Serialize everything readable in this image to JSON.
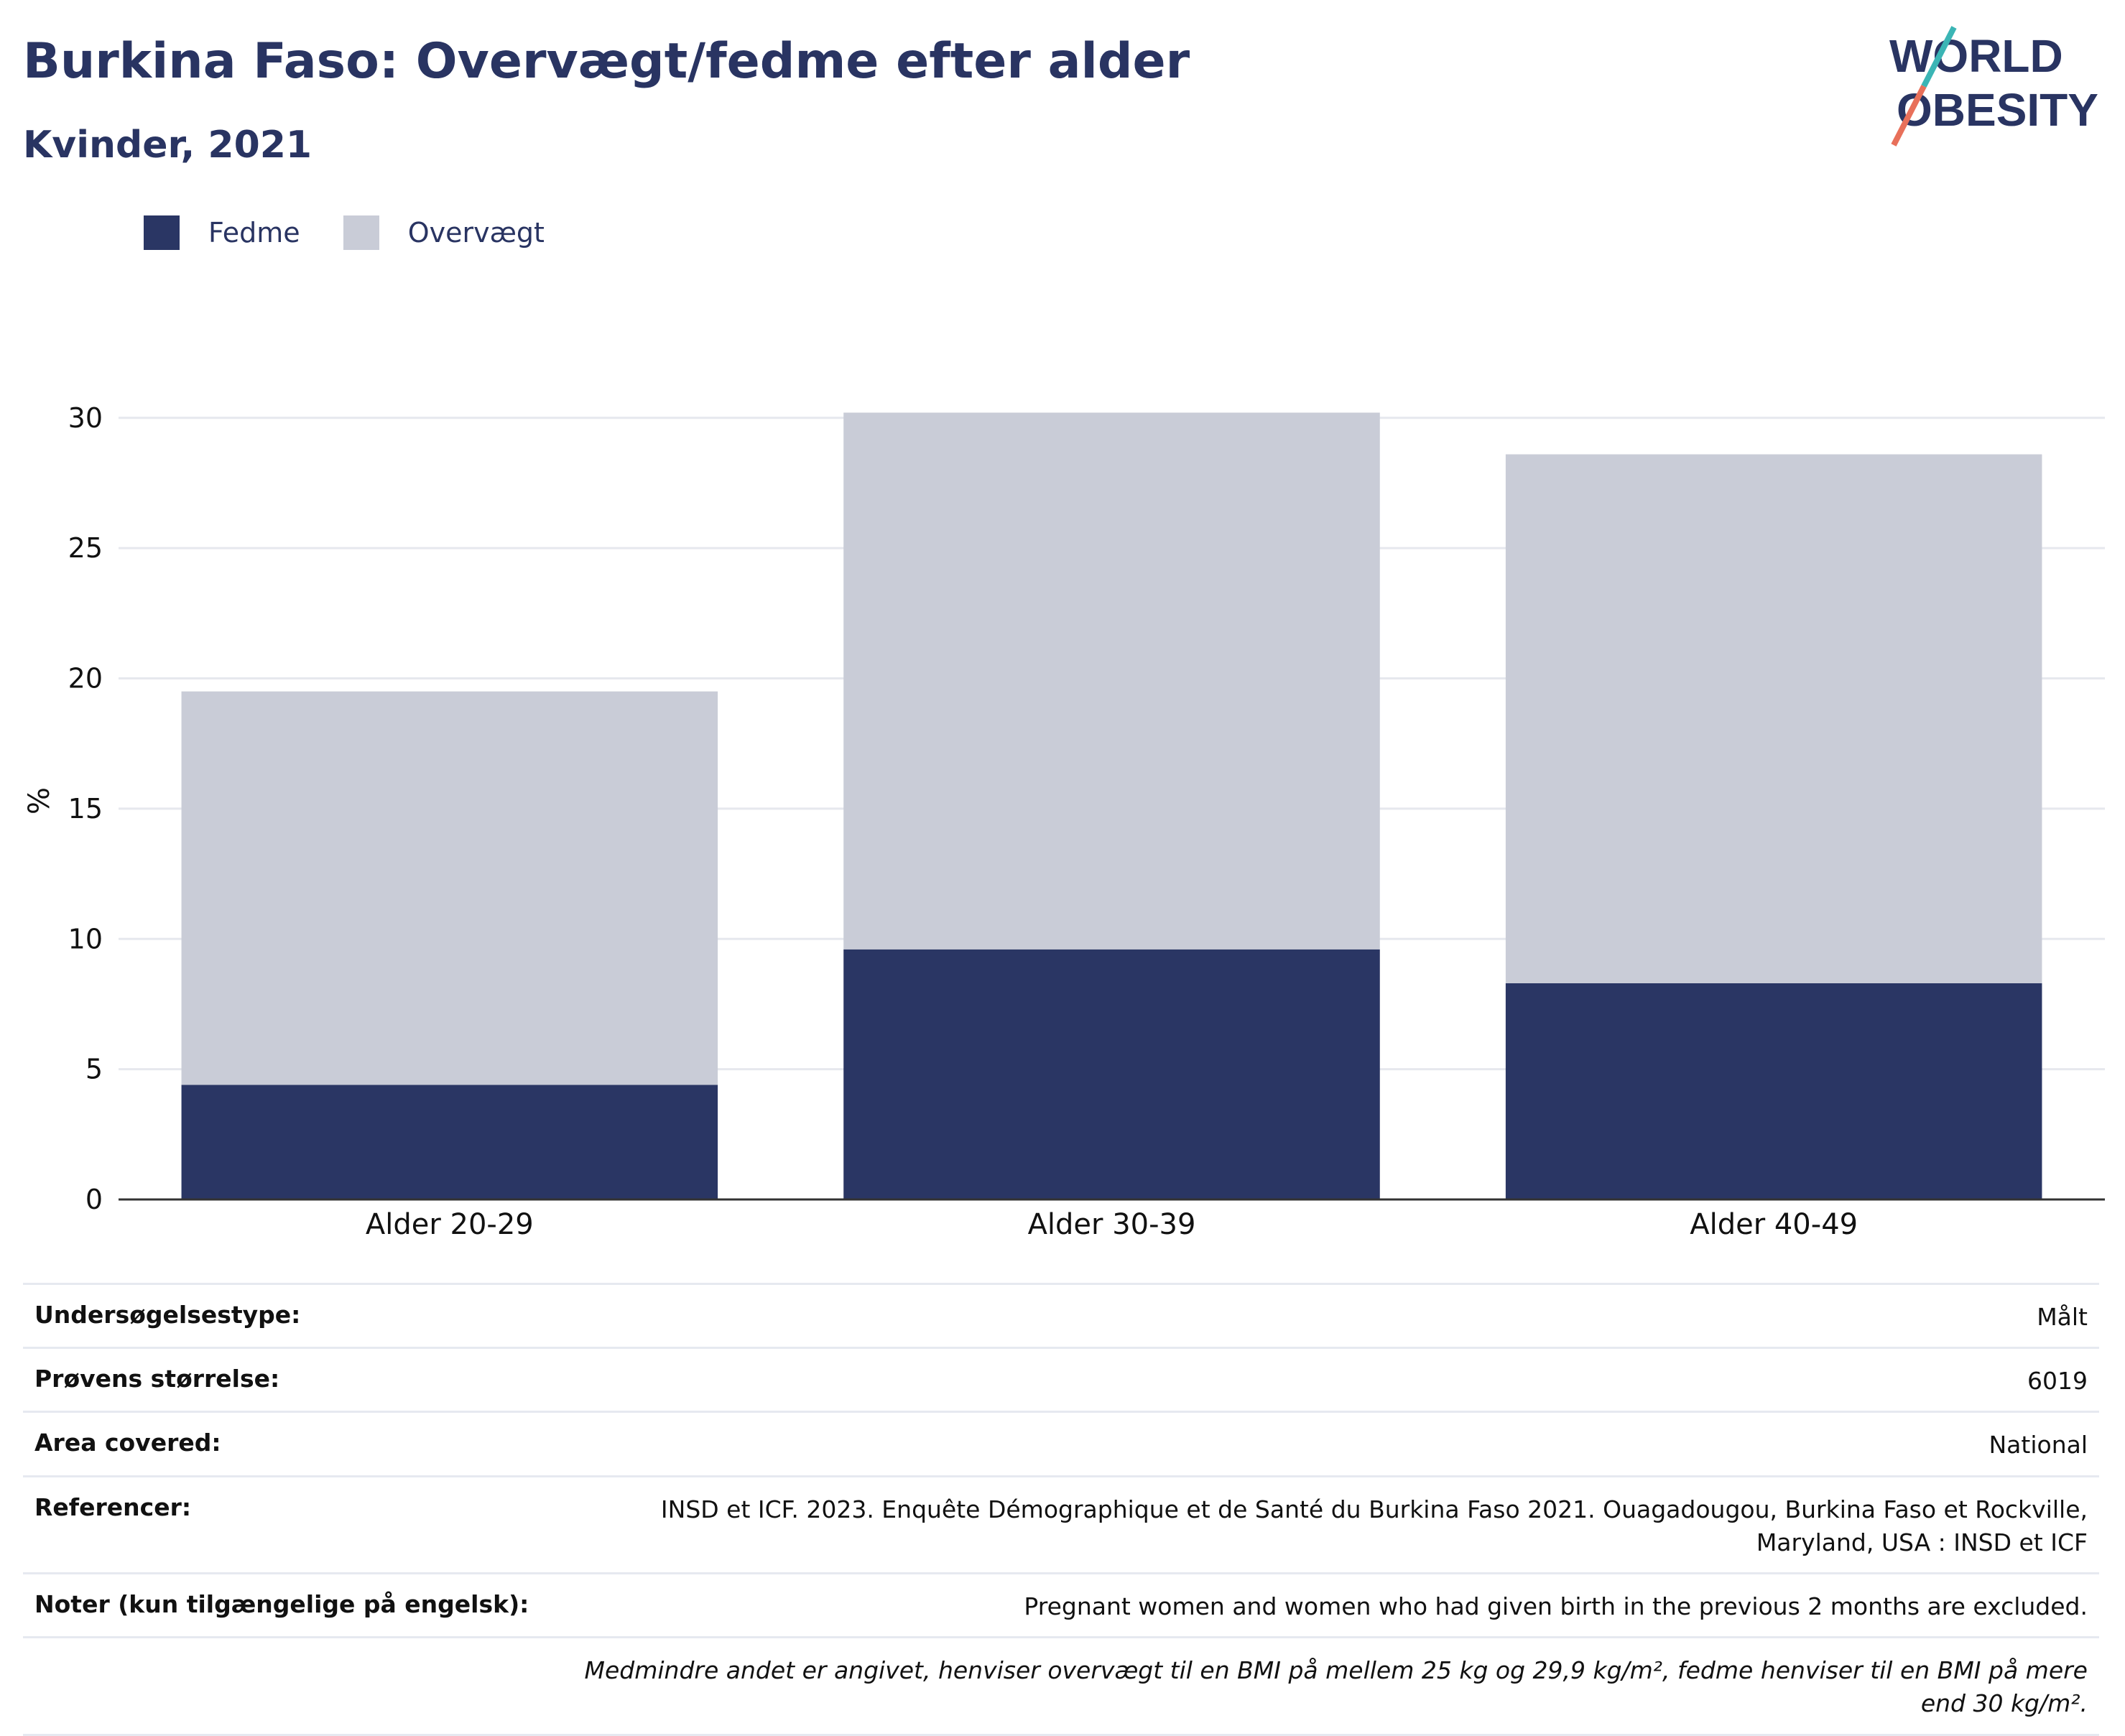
{
  "title": "Burkina Faso: Overvægt/fedme efter alder",
  "subtitle": "Kvinder, 2021",
  "logo": {
    "line1": "WORLD",
    "line2": "OBESITY"
  },
  "colors": {
    "fedme": "#2a3664",
    "overvaegt": "#c9ccd7",
    "text": "#293462"
  },
  "legend": [
    {
      "label": "Fedme",
      "color": "#2a3664"
    },
    {
      "label": "Overvægt",
      "color": "#c9ccd7"
    }
  ],
  "chart_data": {
    "type": "bar",
    "stacked": true,
    "categories": [
      "Alder 20-29",
      "Alder 30-39",
      "Alder 40-49"
    ],
    "series": [
      {
        "name": "Fedme",
        "values": [
          4.4,
          9.6,
          8.3
        ]
      },
      {
        "name": "Overvægt",
        "values": [
          15.1,
          20.6,
          20.3
        ]
      }
    ],
    "ylabel": "%",
    "ylim": [
      0,
      30.6
    ],
    "yticks": [
      0,
      5,
      10,
      15,
      20,
      25,
      30
    ],
    "grid": true,
    "legend_position": "top-left"
  },
  "info": {
    "rows": [
      {
        "label": "Undersøgelsestype:",
        "value": "Målt"
      },
      {
        "label": "Prøvens størrelse:",
        "value": "6019"
      },
      {
        "label": "Area covered:",
        "value": "National"
      },
      {
        "label": "Referencer:",
        "value": "INSD et ICF. 2023. Enquête Démographique et de Santé du Burkina Faso 2021. Ouagadougou, Burkina Faso et Rockville, Maryland, USA : INSD et ICF"
      },
      {
        "label": "Noter (kun tilgængelige på engelsk):",
        "value": "Pregnant women and women who had given birth in the previous 2 months are excluded."
      }
    ],
    "footnote": "Medmindre andet er angivet, henviser overvægt til en BMI på mellem 25 kg og 29,9 kg/m², fedme henviser til en BMI på mere end 30 kg/m²."
  }
}
